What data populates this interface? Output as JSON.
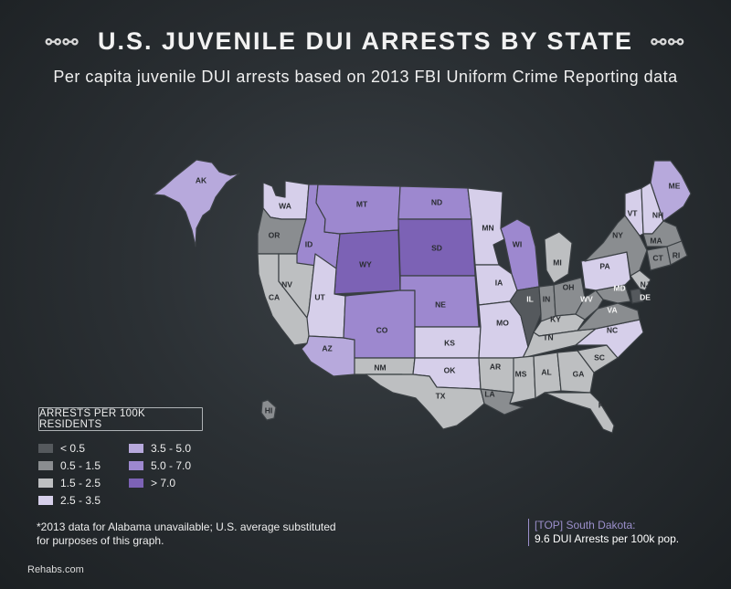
{
  "header": {
    "title": "U.S. JUVENILE DUI ARRESTS BY STATE",
    "subtitle": "Per capita juvenile DUI arrests based on 2013 FBI Uniform Crime Reporting data",
    "title_ornament": "chain-link-icon"
  },
  "legend": {
    "title": "ARRESTS PER 100K RESIDENTS",
    "items": [
      {
        "label": "< 0.5",
        "color": "#55595d"
      },
      {
        "label": "0.5 - 1.5",
        "color": "#8a8d90"
      },
      {
        "label": "1.5 - 2.5",
        "color": "#bdbfc1"
      },
      {
        "label": "2.5 - 3.5",
        "color": "#d6cfea"
      },
      {
        "label": "3.5 - 5.0",
        "color": "#b7a9dc"
      },
      {
        "label": "5.0 - 7.0",
        "color": "#9d88cf"
      },
      {
        "label": "> 7.0",
        "color": "#7c62b5"
      }
    ]
  },
  "states": {
    "AK": {
      "label": "AK",
      "bin": 4
    },
    "HI": {
      "label": "HI",
      "bin": 1
    },
    "WA": {
      "label": "WA",
      "bin": 3
    },
    "OR": {
      "label": "OR",
      "bin": 1
    },
    "CA": {
      "label": "CA",
      "bin": 2
    },
    "NV": {
      "label": "NV",
      "bin": 2
    },
    "ID": {
      "label": "ID",
      "bin": 5
    },
    "MT": {
      "label": "MT",
      "bin": 5
    },
    "WY": {
      "label": "WY",
      "bin": 6
    },
    "UT": {
      "label": "UT",
      "bin": 3
    },
    "AZ": {
      "label": "AZ",
      "bin": 4
    },
    "CO": {
      "label": "CO",
      "bin": 5
    },
    "NM": {
      "label": "NM",
      "bin": 2
    },
    "ND": {
      "label": "ND",
      "bin": 5
    },
    "SD": {
      "label": "SD",
      "bin": 6
    },
    "NE": {
      "label": "NE",
      "bin": 5
    },
    "KS": {
      "label": "KS",
      "bin": 3
    },
    "OK": {
      "label": "OK",
      "bin": 3
    },
    "TX": {
      "label": "TX",
      "bin": 2
    },
    "MN": {
      "label": "MN",
      "bin": 3
    },
    "IA": {
      "label": "IA",
      "bin": 3
    },
    "MO": {
      "label": "MO",
      "bin": 3
    },
    "AR": {
      "label": "AR",
      "bin": 2
    },
    "LA": {
      "label": "LA",
      "bin": 1
    },
    "WI": {
      "label": "WI",
      "bin": 5
    },
    "IL": {
      "label": "IL",
      "bin": 0
    },
    "MI": {
      "label": "MI",
      "bin": 2
    },
    "IN": {
      "label": "IN",
      "bin": 1
    },
    "OH": {
      "label": "OH",
      "bin": 1
    },
    "KY": {
      "label": "KY",
      "bin": 2
    },
    "TN": {
      "label": "TN",
      "bin": 2
    },
    "MS": {
      "label": "MS",
      "bin": 2
    },
    "AL": {
      "label": "AL",
      "bin": 2
    },
    "GA": {
      "label": "GA",
      "bin": 2
    },
    "FL": {
      "label": "FL",
      "bin": 2
    },
    "SC": {
      "label": "SC",
      "bin": 2
    },
    "NC": {
      "label": "NC",
      "bin": 3
    },
    "VA": {
      "label": "VA",
      "bin": 1
    },
    "WV": {
      "label": "WV",
      "bin": 1
    },
    "MD": {
      "label": "MD",
      "bin": 1
    },
    "DE": {
      "label": "DE",
      "bin": 0
    },
    "NJ": {
      "label": "NJ",
      "bin": 2
    },
    "PA": {
      "label": "PA",
      "bin": 3
    },
    "NY": {
      "label": "NY",
      "bin": 1
    },
    "VT": {
      "label": "VT",
      "bin": 3
    },
    "NH": {
      "label": "NH",
      "bin": 3
    },
    "ME": {
      "label": "ME",
      "bin": 4
    },
    "MA": {
      "label": "MA",
      "bin": 1
    },
    "CT": {
      "label": "CT",
      "bin": 1
    },
    "RI": {
      "label": "RI",
      "bin": 1
    }
  },
  "footnote": "*2013 data for Alabama unavailable; U.S. average substituted for purposes of this graph.",
  "top_callout": {
    "tag": "[TOP] South Dakota:",
    "detail": "9.6 DUI Arrests per 100k pop."
  },
  "brand": "Rehabs.com"
}
